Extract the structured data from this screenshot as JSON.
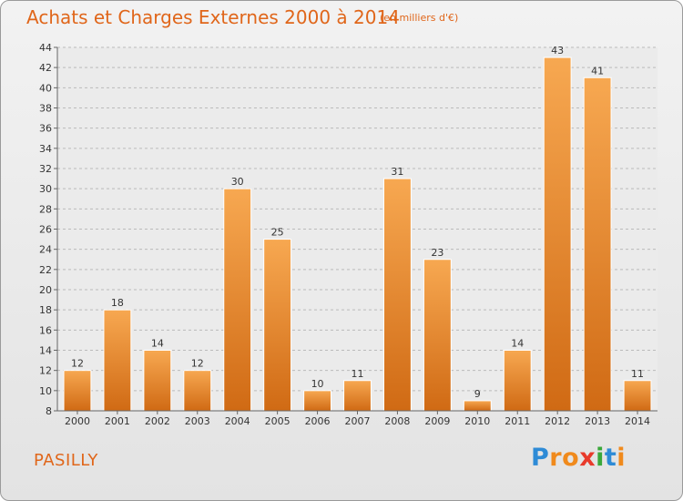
{
  "title": "Achats et Charges Externes 2000 à 2014",
  "subtitle": "(en milliers d'€)",
  "place": "PASILLY",
  "logo": {
    "letters": [
      "P",
      "r",
      "o",
      "x",
      "i",
      "t",
      "i"
    ],
    "colors": [
      "#2e8bd6",
      "#f08a1c",
      "#f08a1c",
      "#e83a2b",
      "#3aa83a",
      "#2e8bd6",
      "#f08a1c"
    ]
  },
  "colors": {
    "bar_light": "#f7a851",
    "bar_dark": "#d06a14",
    "grid": "#bbbbbb",
    "axis": "#666666"
  },
  "chart_data": {
    "type": "bar",
    "title": "Achats et Charges Externes 2000 à 2014",
    "subtitle": "(en milliers d'€)",
    "categories": [
      "2000",
      "2001",
      "2002",
      "2003",
      "2004",
      "2005",
      "2006",
      "2007",
      "2008",
      "2009",
      "2010",
      "2011",
      "2012",
      "2013",
      "2014"
    ],
    "values": [
      12,
      18,
      14,
      12,
      30,
      25,
      10,
      11,
      31,
      23,
      9,
      14,
      43,
      41,
      11
    ],
    "ylim": [
      8,
      44
    ],
    "yticks": [
      8,
      10,
      12,
      14,
      16,
      18,
      20,
      22,
      24,
      26,
      28,
      30,
      32,
      34,
      36,
      38,
      40,
      42,
      44
    ],
    "grid": true
  }
}
